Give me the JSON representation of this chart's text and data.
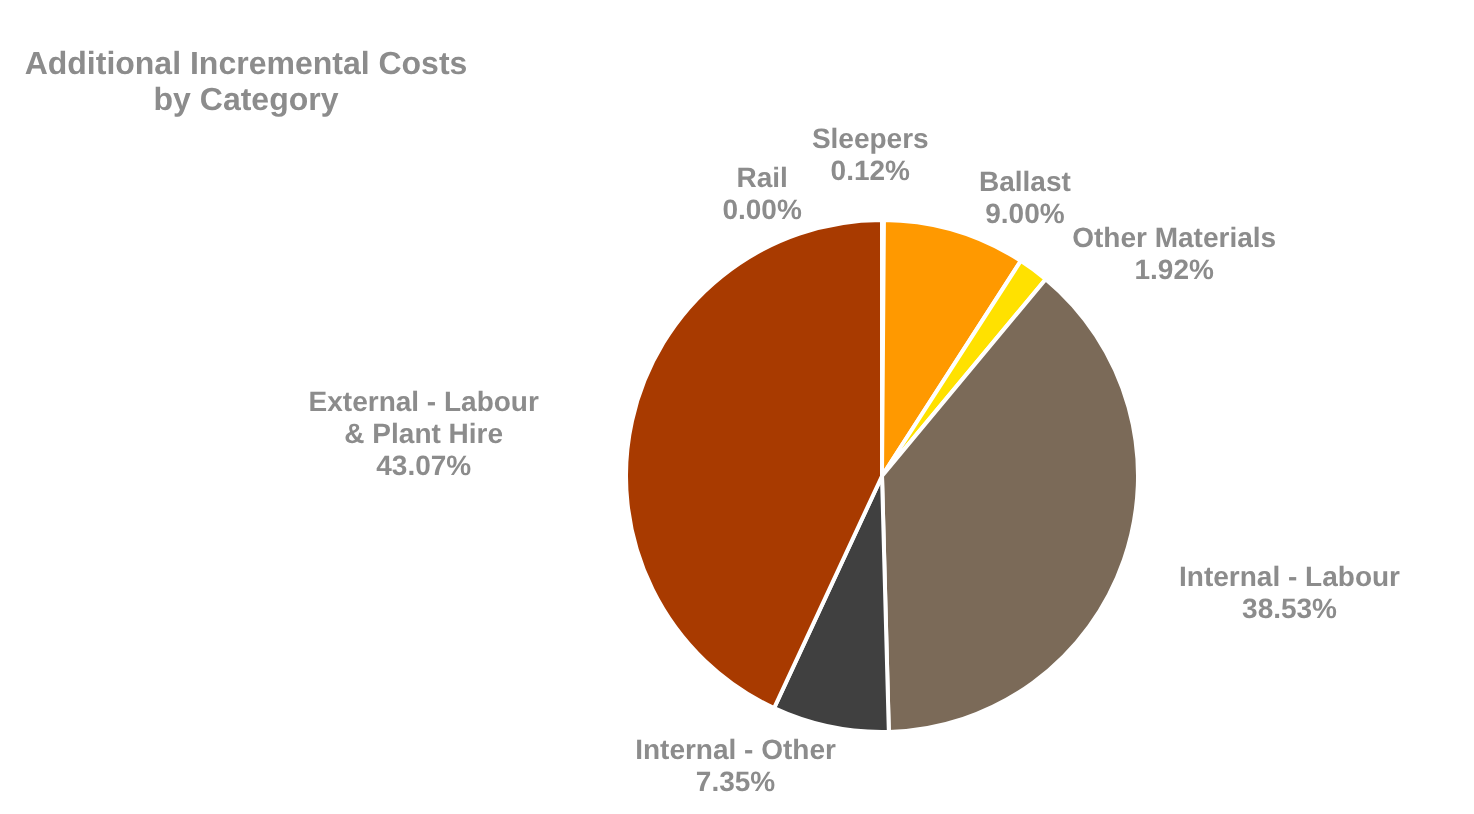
{
  "chart_data": {
    "type": "pie",
    "title": "Additional Incremental Costs by Category",
    "categories": [
      "Rail",
      "Sleepers",
      "Ballast",
      "Other Materials",
      "Internal - Labour",
      "Internal - Other",
      "External - Labour & Plant Hire"
    ],
    "values": [
      0.0,
      0.12,
      9.0,
      1.92,
      38.53,
      7.35,
      43.07
    ],
    "value_labels": [
      "0.00%",
      "0.12%",
      "9.00%",
      "1.92%",
      "38.53%",
      "7.35%",
      "43.07%"
    ],
    "colors": [
      "#c0c0c0",
      "#ffc000",
      "#ff9900",
      "#ffe100",
      "#7b6a58",
      "#404040",
      "#a83a00"
    ]
  }
}
